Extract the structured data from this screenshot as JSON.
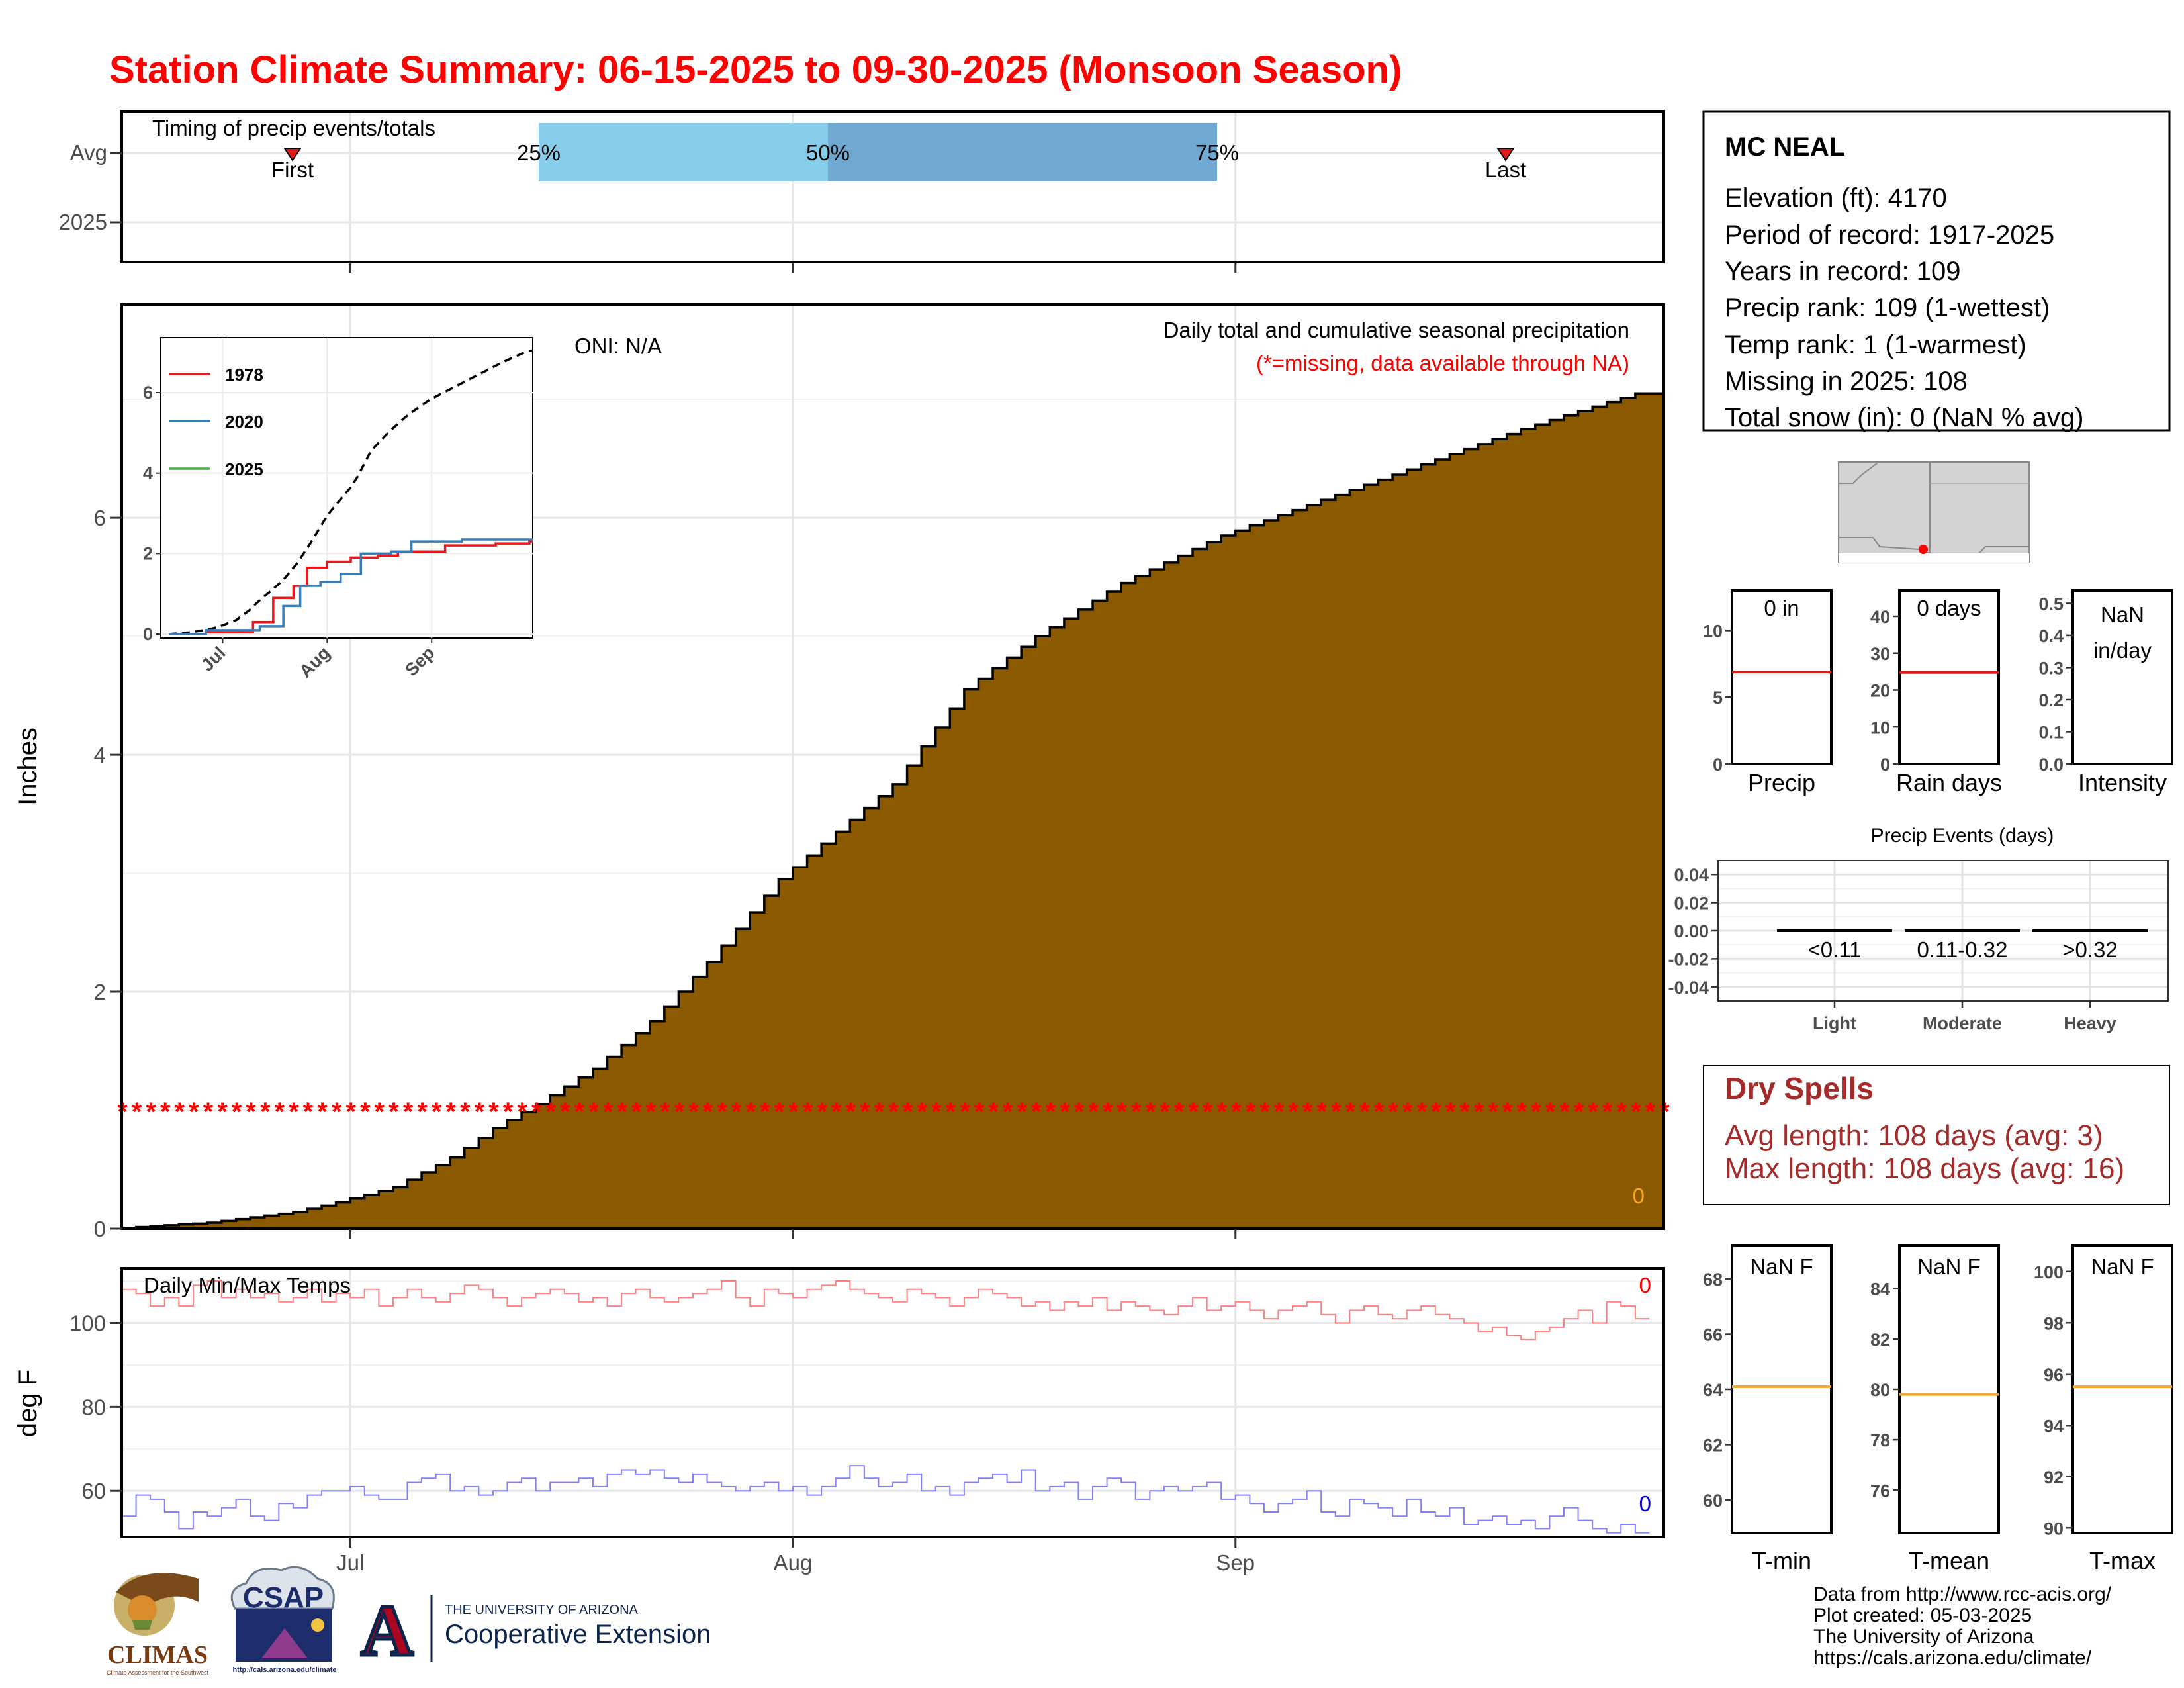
{
  "title": "Station Climate Summary: 06-15-2025 to 09-30-2025 (Monsoon Season)",
  "timing": {
    "title": "Timing of precip events/totals",
    "y_labels": [
      "Avg",
      "2025"
    ],
    "pct_labels": [
      "25%",
      "50%",
      "75%"
    ],
    "first_label": "First",
    "last_label": "Last"
  },
  "chart_data": [
    {
      "type": "area",
      "id": "cumulative_precip",
      "title": "Daily total and cumulative seasonal precipitation",
      "subtitle": "(*=missing, data available through NA)",
      "annotation": "ONI: N/A",
      "ylabel": "Inches",
      "ylim": [
        0,
        7.8
      ],
      "yticks": [
        0,
        2,
        4,
        6
      ],
      "x_start": "2025-06-15",
      "x_end": "2025-09-30",
      "xticks": [
        "Jul",
        "Aug",
        "Sep"
      ],
      "missing_marker_y": 1.0,
      "corner_value": "0",
      "cumulative_avg": [
        {
          "x": "2025-06-15",
          "y": 0.0
        },
        {
          "x": "2025-06-22",
          "y": 0.05
        },
        {
          "x": "2025-06-28",
          "y": 0.14
        },
        {
          "x": "2025-07-01",
          "y": 0.22
        },
        {
          "x": "2025-07-05",
          "y": 0.35
        },
        {
          "x": "2025-07-09",
          "y": 0.6
        },
        {
          "x": "2025-07-12",
          "y": 0.85
        },
        {
          "x": "2025-07-15",
          "y": 1.05
        },
        {
          "x": "2025-07-19",
          "y": 1.35
        },
        {
          "x": "2025-07-23",
          "y": 1.75
        },
        {
          "x": "2025-07-27",
          "y": 2.25
        },
        {
          "x": "2025-08-01",
          "y": 2.95
        },
        {
          "x": "2025-08-05",
          "y": 3.35
        },
        {
          "x": "2025-08-09",
          "y": 3.75
        },
        {
          "x": "2025-08-14",
          "y": 4.55
        },
        {
          "x": "2025-08-19",
          "y": 5.0
        },
        {
          "x": "2025-08-25",
          "y": 5.45
        },
        {
          "x": "2025-09-01",
          "y": 5.85
        },
        {
          "x": "2025-09-08",
          "y": 6.15
        },
        {
          "x": "2025-09-15",
          "y": 6.45
        },
        {
          "x": "2025-09-22",
          "y": 6.75
        },
        {
          "x": "2025-09-30",
          "y": 7.05
        }
      ],
      "inset": {
        "yticks": [
          0,
          2,
          4,
          6
        ],
        "xticks": [
          "Jul",
          "Aug",
          "Sep"
        ],
        "ylim": [
          0,
          7.2
        ],
        "legend": [
          "1978",
          "2020",
          "2025"
        ],
        "series": [
          {
            "name": "1978",
            "color": "#e41a1c",
            "points": [
              {
                "x": "2025-06-15",
                "y": 0.0
              },
              {
                "x": "2025-06-26",
                "y": 0.05
              },
              {
                "x": "2025-07-10",
                "y": 0.3
              },
              {
                "x": "2025-07-16",
                "y": 0.9
              },
              {
                "x": "2025-07-22",
                "y": 1.2
              },
              {
                "x": "2025-07-26",
                "y": 1.65
              },
              {
                "x": "2025-08-01",
                "y": 1.8
              },
              {
                "x": "2025-08-08",
                "y": 1.9
              },
              {
                "x": "2025-08-16",
                "y": 1.95
              },
              {
                "x": "2025-08-22",
                "y": 2.05
              },
              {
                "x": "2025-09-05",
                "y": 2.2
              },
              {
                "x": "2025-09-20",
                "y": 2.25
              },
              {
                "x": "2025-09-30",
                "y": 2.3
              }
            ]
          },
          {
            "name": "2020",
            "color": "#377eb8",
            "points": [
              {
                "x": "2025-06-15",
                "y": 0.0
              },
              {
                "x": "2025-06-26",
                "y": 0.1
              },
              {
                "x": "2025-07-12",
                "y": 0.2
              },
              {
                "x": "2025-07-19",
                "y": 0.7
              },
              {
                "x": "2025-07-24",
                "y": 1.2
              },
              {
                "x": "2025-07-30",
                "y": 1.3
              },
              {
                "x": "2025-08-05",
                "y": 1.5
              },
              {
                "x": "2025-08-11",
                "y": 2.0
              },
              {
                "x": "2025-08-20",
                "y": 2.05
              },
              {
                "x": "2025-08-26",
                "y": 2.3
              },
              {
                "x": "2025-09-10",
                "y": 2.35
              },
              {
                "x": "2025-09-30",
                "y": 2.35
              }
            ]
          },
          {
            "name": "2025",
            "color": "#4daf4a",
            "points": []
          }
        ]
      }
    },
    {
      "type": "line",
      "id": "daily_temps",
      "title": "Daily Min/Max Temps",
      "ylabel": "deg F",
      "ylim": [
        49,
        113
      ],
      "yticks": [
        60,
        80,
        100
      ],
      "xticks": [
        "Jul",
        "Aug",
        "Sep"
      ],
      "max_label": "0",
      "min_label": "0",
      "tmax_daily": [
        108,
        107,
        104,
        106,
        104,
        109,
        110,
        106,
        108,
        106,
        107,
        105,
        106,
        108,
        105,
        107,
        106,
        108,
        104,
        106,
        108,
        106,
        105,
        107,
        109,
        108,
        106,
        104,
        106,
        107,
        108,
        107,
        105,
        106,
        104,
        107,
        108,
        106,
        105,
        106,
        107,
        108,
        110,
        106,
        104,
        108,
        107,
        106,
        108,
        109,
        110,
        108,
        107,
        106,
        105,
        108,
        107,
        106,
        104,
        106,
        108,
        107,
        106,
        104,
        105,
        103,
        105,
        104,
        106,
        103,
        105,
        104,
        103,
        102,
        104,
        106,
        103,
        104,
        105,
        103,
        101,
        103,
        104,
        105,
        102,
        100,
        103,
        104,
        102,
        101,
        103,
        104,
        102,
        101,
        100,
        98,
        99,
        97,
        96,
        98,
        99,
        101,
        103,
        100,
        105,
        104,
        101
      ],
      "tmin_daily": [
        54,
        59,
        58,
        55,
        51,
        55,
        54,
        56,
        58,
        54,
        53,
        57,
        56,
        59,
        60,
        60,
        61,
        59,
        58,
        58,
        62,
        63,
        64,
        60,
        61,
        59,
        60,
        62,
        63,
        60,
        62,
        62,
        63,
        61,
        64,
        65,
        64,
        65,
        63,
        62,
        64,
        62,
        61,
        60,
        61,
        62,
        60,
        61,
        59,
        61,
        63,
        66,
        63,
        61,
        62,
        64,
        60,
        61,
        59,
        62,
        63,
        64,
        62,
        65,
        60,
        61,
        62,
        58,
        61,
        63,
        62,
        58,
        60,
        61,
        60,
        61,
        62,
        58,
        59,
        57,
        55,
        57,
        58,
        60,
        55,
        54,
        58,
        57,
        56,
        54,
        58,
        55,
        54,
        56,
        52,
        53,
        54,
        52,
        53,
        51,
        54,
        56,
        53,
        51,
        50,
        52,
        50
      ]
    },
    {
      "type": "bar",
      "id": "precip_vs_normal",
      "xlabel": "Precip",
      "label": "0 in",
      "ylim": [
        0,
        13
      ],
      "yticks": [
        0,
        5,
        10
      ],
      "value": 0,
      "avg_line": 6.9
    },
    {
      "type": "bar",
      "id": "rain_days",
      "xlabel": "Rain days",
      "label": "0 days",
      "ylim": [
        0,
        47
      ],
      "yticks": [
        0,
        10,
        20,
        30,
        40
      ],
      "value": 0,
      "avg_line": 24.8
    },
    {
      "type": "bar",
      "id": "intensity",
      "xlabel": "Intensity",
      "label_line1": "NaN",
      "label_line2": "in/day",
      "ylim": [
        0,
        0.54
      ],
      "yticks": [
        0.0,
        0.1,
        0.2,
        0.3,
        0.4,
        0.5
      ],
      "value": null
    },
    {
      "type": "bar",
      "id": "precip_events",
      "title": "Precip Events (days)",
      "categories": [
        "Light",
        "Moderate",
        "Heavy"
      ],
      "bin_labels": [
        "<0.11",
        "0.11-0.32",
        ">0.32"
      ],
      "values": [
        0,
        0,
        0
      ],
      "ylim": [
        -0.05,
        0.05
      ],
      "yticks": [
        -0.04,
        -0.02,
        0.0,
        0.02,
        0.04
      ]
    },
    {
      "type": "bar",
      "id": "tmin_panel",
      "xlabel": "T-min",
      "label": "NaN F",
      "ylim": [
        58.8,
        69.2
      ],
      "yticks": [
        60,
        62,
        64,
        66,
        68
      ],
      "avg_line": 64.1
    },
    {
      "type": "bar",
      "id": "tmean_panel",
      "xlabel": "T-mean",
      "label": "NaN F",
      "ylim": [
        74.3,
        85.7
      ],
      "yticks": [
        76,
        78,
        80,
        82,
        84
      ],
      "avg_line": 79.8
    },
    {
      "type": "bar",
      "id": "tmax_panel",
      "xlabel": "T-max",
      "label": "NaN F",
      "ylim": [
        89.8,
        101.0
      ],
      "yticks": [
        90,
        92,
        94,
        96,
        98,
        100
      ],
      "avg_line": 95.5
    }
  ],
  "station": {
    "name": "MC NEAL",
    "lines": [
      "Elevation (ft): 4170",
      "Period of record: 1917-2025",
      "Years in record: 109",
      "Precip rank: 109 (1-wettest)",
      "Temp rank: 1 (1-warmest)",
      "Missing in 2025: 108",
      "Total snow (in): 0 (NaN % avg)"
    ]
  },
  "dry_spells": {
    "title": "Dry Spells",
    "avg_line": "Avg length: 108 days (avg: 3)",
    "max_line": "Max length: 108 days (avg: 16)"
  },
  "footer": {
    "lines": [
      "Data from http://www.rcc-acis.org/",
      "Plot created: 05-03-2025",
      "The University of Arizona",
      "https://cals.arizona.edu/climate/"
    ]
  },
  "logos": {
    "climas": "CLIMAS",
    "climas_sub": "Climate Assessment for the Southwest",
    "csap": "CSAP",
    "csap_url": "http://cals.arizona.edu/climate",
    "ua_letter": "A",
    "ua_line1": "THE UNIVERSITY OF ARIZONA",
    "ua_line2": "Cooperative Extension"
  },
  "colors": {
    "title_red": "#ff0000",
    "precip_fill": "#8b5a00",
    "avg_light_blue": "#87ceeb",
    "avg_mid_blue": "#6fa8d0",
    "tmax_line": "#ff8080",
    "tmin_line": "#8080ff",
    "ref_red": "#e31a1c",
    "ref_orange": "#f5a623",
    "dry_spell_red": "#a52a2a"
  }
}
